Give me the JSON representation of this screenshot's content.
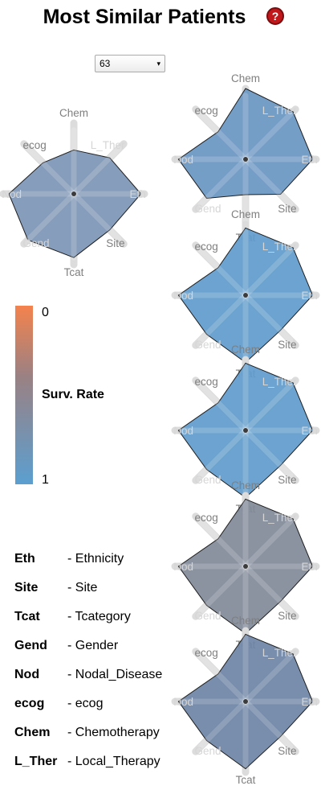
{
  "header": {
    "title": "Most Similar Patients",
    "help_icon": "?"
  },
  "patient_select": {
    "value": "63",
    "arrow": "▾"
  },
  "scale": {
    "top_label": "0",
    "bottom_label": "1",
    "title": "Surv. Rate",
    "colors": {
      "low": "#f4824d",
      "mid": "#9a8184",
      "high": "#5b9fd0"
    }
  },
  "axis_labels": [
    "Chem",
    "L_Ther",
    "Eth",
    "Site",
    "Tcat",
    "Gend",
    "Nod",
    "ecog"
  ],
  "radars": [
    {
      "fill": "#7c95b5",
      "values": [
        0.62,
        0.72,
        0.95,
        0.72,
        0.9,
        0.92,
        0.92,
        0.62
      ]
    },
    {
      "fill": "#6996c2",
      "values": [
        1.0,
        0.95,
        0.95,
        0.7,
        0.5,
        0.78,
        0.95,
        0.55
      ]
    },
    {
      "fill": "#5f9bcc",
      "values": [
        0.95,
        0.95,
        0.95,
        0.7,
        0.95,
        0.78,
        0.95,
        0.55
      ]
    },
    {
      "fill": "#5f9bcc",
      "values": [
        0.95,
        0.95,
        0.95,
        0.7,
        0.95,
        0.78,
        0.95,
        0.55
      ]
    },
    {
      "fill": "#818a99",
      "values": [
        0.95,
        0.95,
        0.95,
        0.7,
        0.95,
        0.78,
        0.95,
        0.55
      ]
    },
    {
      "fill": "#6c84a5",
      "values": [
        0.95,
        0.95,
        0.95,
        0.7,
        0.95,
        0.78,
        0.95,
        0.55
      ]
    }
  ],
  "legend": [
    {
      "abbr": "Eth",
      "full": "- Ethnicity"
    },
    {
      "abbr": "Site",
      "full": "- Site"
    },
    {
      "abbr": "Tcat",
      "full": "- Tcategory"
    },
    {
      "abbr": "Gend",
      "full": "- Gender"
    },
    {
      "abbr": "Nod",
      "full": "- Nodal_Disease"
    },
    {
      "abbr": "ecog",
      "full": "- ecog"
    },
    {
      "abbr": "Chem",
      "full": "- Chemotherapy"
    },
    {
      "abbr": "L_Ther",
      "full": "- Local_Therapy"
    }
  ]
}
